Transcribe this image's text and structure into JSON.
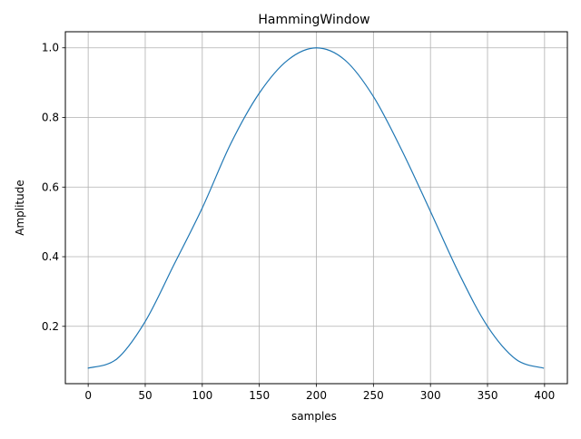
{
  "chart_data": {
    "type": "line",
    "title": "HammingWindow",
    "xlabel": "samples",
    "ylabel": "Amplitude",
    "xlim": [
      -20,
      420
    ],
    "ylim": [
      0.0353,
      1.0462
    ],
    "x_ticks": [
      0,
      50,
      100,
      150,
      200,
      250,
      300,
      350,
      400
    ],
    "x_tick_labels": [
      "0",
      "50",
      "100",
      "150",
      "200",
      "250",
      "300",
      "350",
      "400"
    ],
    "y_ticks": [
      0.2,
      0.4,
      0.6,
      0.8,
      1.0
    ],
    "y_tick_labels": [
      "0.2",
      "0.4",
      "0.6",
      "0.8",
      "1.0"
    ],
    "grid": true,
    "legend": "none",
    "series": [
      {
        "color": "#1f77b4",
        "x": [
          0,
          25,
          50,
          75,
          100,
          125,
          150,
          175,
          200,
          225,
          250,
          275,
          300,
          325,
          350,
          375,
          399
        ],
        "y": [
          0.08,
          0.106,
          0.214,
          0.376,
          0.54,
          0.725,
          0.87,
          0.965,
          1.0,
          0.965,
          0.86,
          0.705,
          0.53,
          0.352,
          0.2,
          0.105,
          0.08
        ]
      }
    ]
  }
}
